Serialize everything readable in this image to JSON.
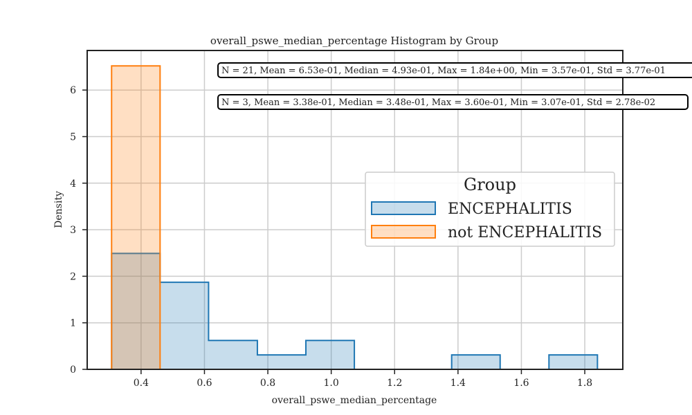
{
  "chart_data": {
    "type": "histogram",
    "title": "overall_pswe_median_percentage Histogram by Group",
    "xlabel": "overall_pswe_median_percentage",
    "ylabel": "Density",
    "xlim": [
      0.23,
      1.92
    ],
    "ylim": [
      0,
      6.85
    ],
    "x_ticks": [
      0.4,
      0.6,
      0.8,
      1.0,
      1.2,
      1.4,
      1.6,
      1.8
    ],
    "x_tick_labels": [
      "0.4",
      "0.6",
      "0.8",
      "1.0",
      "1.2",
      "1.4",
      "1.6",
      "1.8"
    ],
    "y_ticks": [
      0,
      1,
      2,
      3,
      4,
      5,
      6
    ],
    "y_tick_labels": [
      "0",
      "1",
      "2",
      "3",
      "4",
      "5",
      "6"
    ],
    "grid": true,
    "legend": {
      "title": "Group",
      "placement": "center-right"
    },
    "series": [
      {
        "name": "ENCEPHALITIS",
        "edge_color": "#1f77b4",
        "fill_color": "#1f77b4",
        "bins": [
          {
            "x0": 0.307,
            "x1": 0.46,
            "density": 2.49
          },
          {
            "x0": 0.46,
            "x1": 0.613,
            "density": 1.87
          },
          {
            "x0": 0.613,
            "x1": 0.767,
            "density": 0.62
          },
          {
            "x0": 0.767,
            "x1": 0.92,
            "density": 0.31
          },
          {
            "x0": 0.92,
            "x1": 1.073,
            "density": 0.62
          },
          {
            "x0": 1.073,
            "x1": 1.227,
            "density": 0
          },
          {
            "x0": 1.227,
            "x1": 1.38,
            "density": 0
          },
          {
            "x0": 1.38,
            "x1": 1.533,
            "density": 0.31
          },
          {
            "x0": 1.533,
            "x1": 1.687,
            "density": 0
          },
          {
            "x0": 1.687,
            "x1": 1.84,
            "density": 0.31
          }
        ]
      },
      {
        "name": "not ENCEPHALITIS",
        "edge_color": "#ff7f0e",
        "fill_color": "#ff7f0e",
        "bins": [
          {
            "x0": 0.307,
            "x1": 0.46,
            "density": 6.52
          }
        ]
      }
    ],
    "annotations": [
      {
        "text": "N = 21, Mean = 6.53e-01, Median = 4.93e-01, Max = 1.84e+00, Min = 3.57e-01, Std = 3.77e-01",
        "series": "ENCEPHALITIS"
      },
      {
        "text": "N = 3, Mean = 3.38e-01, Median = 3.48e-01, Max = 3.60e-01, Min = 3.07e-01, Std = 2.78e-02",
        "series": "not ENCEPHALITIS"
      }
    ]
  }
}
